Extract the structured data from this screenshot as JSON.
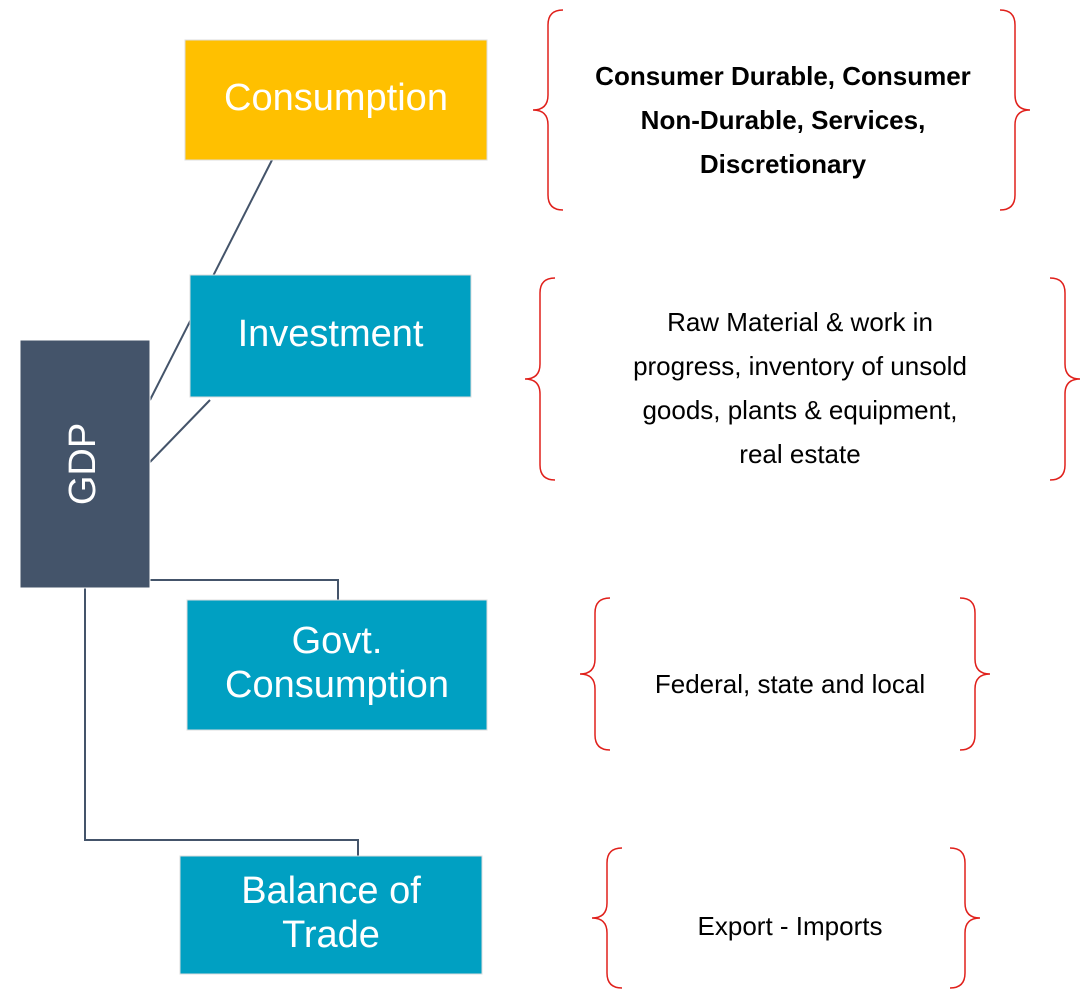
{
  "root": {
    "label": "GDP"
  },
  "components": [
    {
      "label": [
        "Consumption"
      ],
      "description": [
        "Consumer Durable, Consumer",
        "Non-Durable, Services,",
        "Discretionary"
      ]
    },
    {
      "label": [
        "Investment"
      ],
      "description": [
        "Raw Material & work in",
        "progress, inventory of unsold",
        "goods, plants & equipment,",
        "real estate"
      ]
    },
    {
      "label": [
        "Govt.",
        "Consumption"
      ],
      "description": [
        "Federal, state and local"
      ]
    },
    {
      "label": [
        "Balance of",
        "Trade"
      ],
      "description": [
        "Export - Imports"
      ]
    }
  ]
}
